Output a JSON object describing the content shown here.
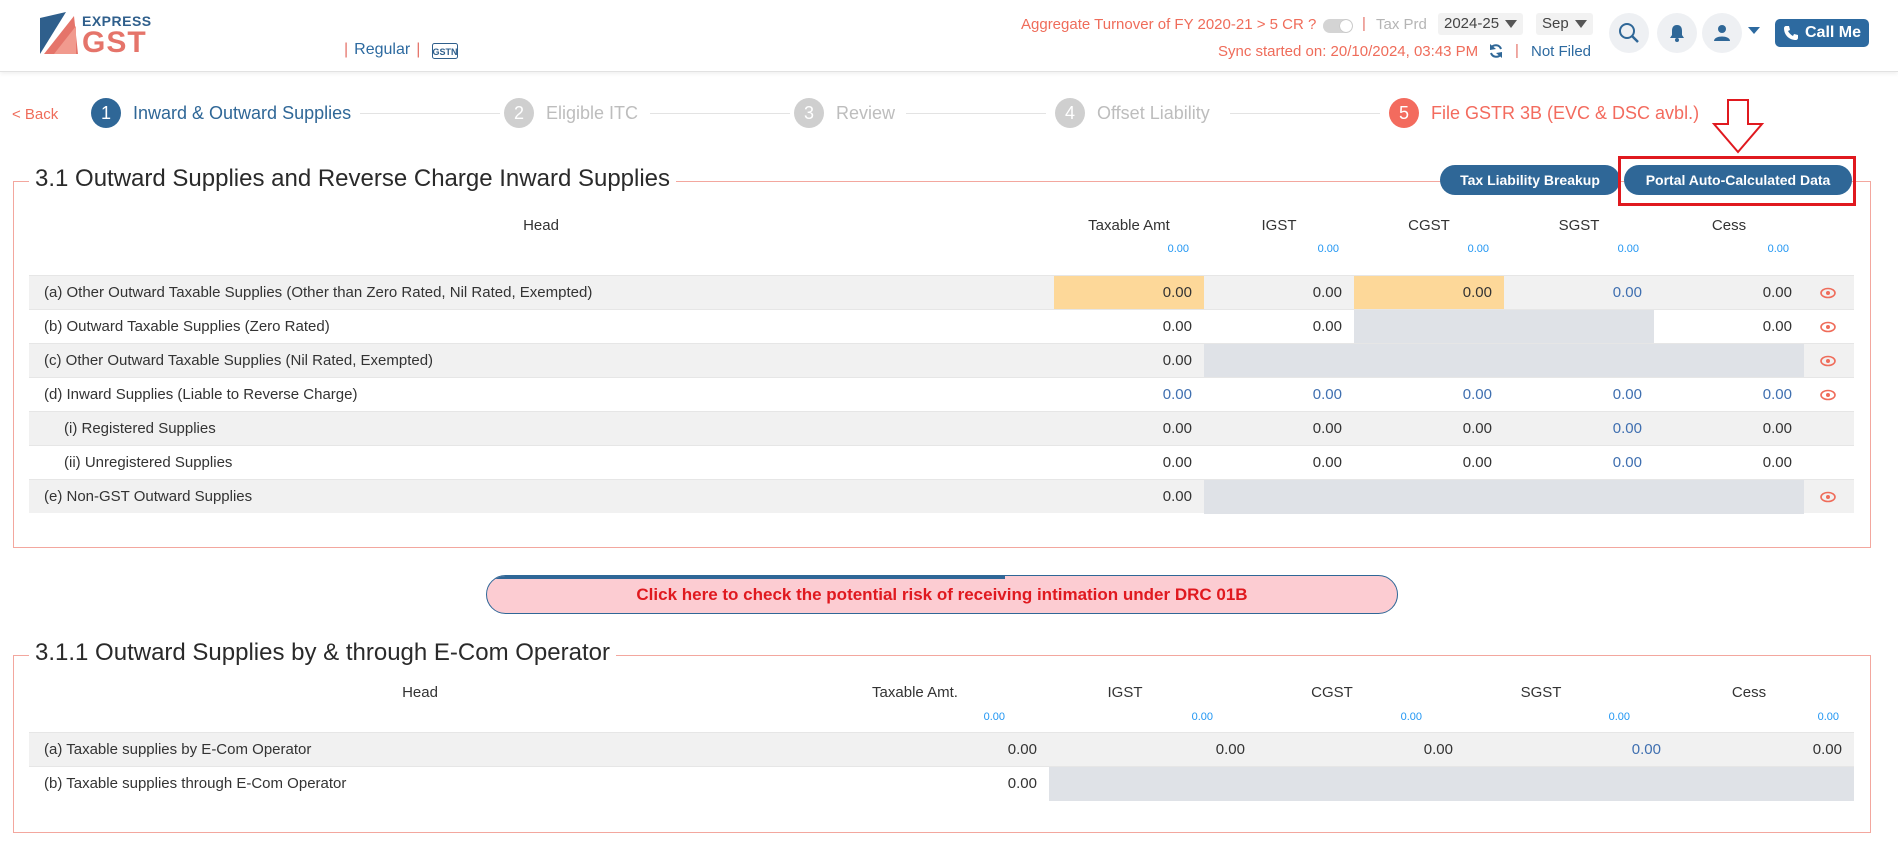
{
  "header": {
    "logo_top": "EXPRESS",
    "logo_bottom": "GST",
    "return_type": "Regular",
    "aggregate_text": "Aggregate Turnover of FY 2020-21 > 5 CR ?",
    "tax_period_label": "Tax Prd",
    "fy_value": "2024-25",
    "month_value": "Sep",
    "sync_text": "Sync started on: 20/10/2024, 03:43 PM",
    "status": "Not Filed",
    "call_me": "Call Me"
  },
  "nav": {
    "back": "< Back",
    "steps": [
      {
        "num": "1",
        "label": "Inward & Outward Supplies"
      },
      {
        "num": "2",
        "label": "Eligible ITC"
      },
      {
        "num": "3",
        "label": "Review"
      },
      {
        "num": "4",
        "label": "Offset Liability"
      },
      {
        "num": "5",
        "label": "File GSTR 3B (EVC & DSC avbl.)"
      }
    ]
  },
  "section1": {
    "title": "3.1 Outward Supplies and Reverse Charge Inward Supplies",
    "btn_breakup": "Tax Liability Breakup",
    "btn_portal": "Portal Auto-Calculated Data",
    "headers": [
      "Head",
      "Taxable Amt",
      "IGST",
      "CGST",
      "SGST",
      "Cess"
    ],
    "totals": [
      "0.00",
      "0.00",
      "0.00",
      "0.00",
      "0.00"
    ],
    "rows": [
      {
        "label": "(a) Other Outward Taxable Supplies (Other than Zero Rated, Nil Rated, Exempted)",
        "taxable": "0.00",
        "igst": "0.00",
        "cgst": "0.00",
        "sgst": "0.00",
        "cess": "0.00"
      },
      {
        "label": "(b) Outward Taxable Supplies (Zero Rated)",
        "taxable": "0.00",
        "igst": "0.00",
        "cess": "0.00"
      },
      {
        "label": "(c) Other Outward Taxable Supplies (Nil Rated, Exempted)",
        "taxable": "0.00"
      },
      {
        "label": "(d) Inward Supplies (Liable to Reverse Charge)",
        "taxable": "0.00",
        "igst": "0.00",
        "cgst": "0.00",
        "sgst": "0.00",
        "cess": "0.00"
      },
      {
        "label": "(i) Registered Supplies",
        "taxable": "0.00",
        "igst": "0.00",
        "cgst": "0.00",
        "sgst": "0.00",
        "cess": "0.00"
      },
      {
        "label": "(ii) Unregistered Supplies",
        "taxable": "0.00",
        "igst": "0.00",
        "cgst": "0.00",
        "sgst": "0.00",
        "cess": "0.00"
      },
      {
        "label": "(e) Non-GST Outward Supplies",
        "taxable": "0.00"
      }
    ]
  },
  "drc_banner": "Click here to check the potential risk of receiving intimation under DRC 01B",
  "section2": {
    "title": "3.1.1 Outward Supplies by & through E-Com Operator",
    "headers": [
      "Head",
      "Taxable Amt.",
      "IGST",
      "CGST",
      "SGST",
      "Cess"
    ],
    "totals": [
      "0.00",
      "0.00",
      "0.00",
      "0.00",
      "0.00"
    ],
    "rows": [
      {
        "label": "(a)  Taxable supplies by E-Com Operator",
        "taxable": "0.00",
        "igst": "0.00",
        "cgst": "0.00",
        "sgst": "0.00",
        "cess": "0.00"
      },
      {
        "label": "(b)  Taxable supplies through E-Com Operator",
        "taxable": "0.00"
      }
    ]
  },
  "colors": {
    "primary": "#2f6797",
    "accent": "#ef6c5a",
    "highlight": "#fdd899",
    "alert_red": "#e0191f"
  }
}
